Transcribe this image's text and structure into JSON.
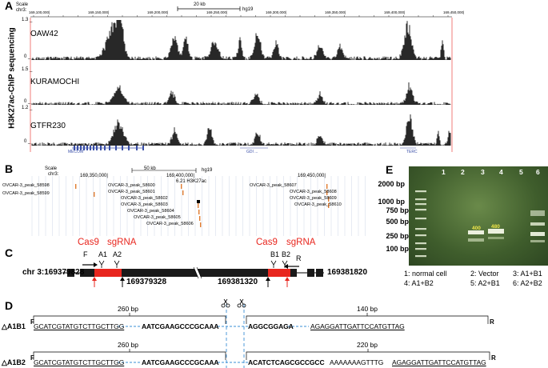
{
  "panels": {
    "a": "A",
    "b": "B",
    "c": "C",
    "d": "D",
    "e": "E"
  },
  "panelA": {
    "ylabel": "H3K27ac-ChIP sequencing",
    "scale_label": "Scale",
    "chrom_label": "chr3:",
    "scalebar_label": "20 kb",
    "assembly": "hg19",
    "coords": [
      "169,100,000|",
      "169,150,000|",
      "169,200,000|",
      "169,250,000|",
      "169,300,000|",
      "169,350,000|",
      "169,400,000|",
      "169,450,000|"
    ],
    "coords_full": [
      "169,100,000|",
      "169,150,000|",
      "169,200,000|",
      "169,250,000|",
      "169,300,000|",
      "169,350,000|",
      "169,400,000|",
      "169,450,000|"
    ],
    "tracks": [
      {
        "name": "OAW42",
        "ymax": "1.3 _",
        "ymin": "0 _"
      },
      {
        "name": "KURAMOCHI",
        "ymax": "1.5 _",
        "ymin": "0 _"
      },
      {
        "name": "GTFR230",
        "ymax": "1.2 _",
        "ymin": "0 _"
      }
    ],
    "genes": [
      "MECOM",
      "GDI ... ",
      "TERC"
    ]
  },
  "panelB": {
    "scale_label": "Scale",
    "chrom_label": "chr3:",
    "scalebar_label": "50 kb",
    "assembly": "hg19",
    "coords": [
      "169,350,000|",
      "169,400,000|",
      "169,450,000|"
    ],
    "track_label": "6.21 H3K27ac",
    "peaks": [
      "OVCAR-3_peak_58598",
      "OVCAR-3_peak_58599",
      "OVCAR-3_peak_58600",
      "OVCAR-3_peak_58601",
      "OVCAR-3_peak_58602",
      "OVCAR-3_peak_58603",
      "OVCAR-3_peak_58604",
      "OVCAR-3_peak_58605",
      "OVCAR-3_peak_58606",
      "OVCAR-3_peak_58607",
      "OVCAR-3_peak_58608",
      "OVCAR-3_peak_58609",
      "OVCAR-3_peak_58610"
    ]
  },
  "panelC": {
    "chr_label": "chr 3:169379828",
    "end_label": "169381820",
    "mid_left": "169379328",
    "mid_right": "169381320",
    "cas9": "Cas9",
    "sgrna": "sgRNA",
    "primers": [
      "F",
      "A1",
      "A2",
      "B1",
      "B2",
      "R"
    ],
    "colors": {
      "red": "#e8261e",
      "bar": "#1a1a1a"
    }
  },
  "panelD": {
    "rows": [
      {
        "label": "△A1B1",
        "left_bp": "260 bp",
        "right_bp": "140 bp",
        "F": "F",
        "R": "R",
        "left_primer": "GCATCGTATGTCTTGCTTGG",
        "left_core": "AATCGAAGCCCGCAAA",
        "right_core": "AGGCGGAGA",
        "right_primer": "AGAGGATTGATTCCATGTTAG"
      },
      {
        "label": "△A1B2",
        "left_bp": "260 bp",
        "right_bp": "220 bp",
        "F": "F",
        "R": "R",
        "left_primer": "GCATCGTATGTCTTGCTTGG",
        "left_core": "AATCGAAGCCCGCAAA",
        "right_core": "ACATCTCAGCGCCGCC",
        "right_mid": "AAAAAAAGTTTG",
        "right_primer": "AGAGGATTGATTCCATGTTAG"
      }
    ]
  },
  "panelE": {
    "ladder": [
      "2000 bp",
      "1000 bp",
      "750 bp",
      "500 bp",
      "250 bp",
      "100 bp"
    ],
    "lanes": [
      "1",
      "2",
      "3",
      "4",
      "5",
      "6"
    ],
    "band_labels": [
      "400",
      "480"
    ],
    "legend": [
      "1: normal cell",
      "2: Vector",
      "3: A1+B1",
      "4: A1+B2",
      "5: A2+B1",
      "6: A2+B2"
    ]
  }
}
